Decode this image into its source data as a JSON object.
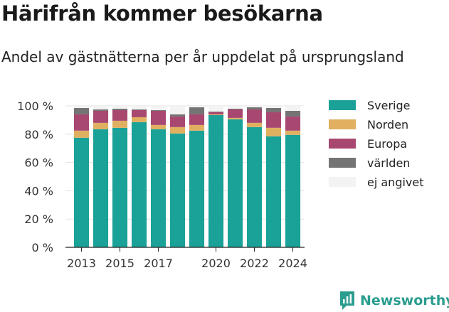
{
  "title": "Härifrån kommer besökarna",
  "subtitle": "Andel av gästnätterna per år uppdelat på ursprungsland",
  "brand": "Newsworthy",
  "chart_data": {
    "type": "bar",
    "stacked": true,
    "categories": [
      "2013",
      "2014",
      "2015",
      "2016",
      "2017",
      "2018",
      "2019",
      "2020",
      "2021",
      "2022",
      "2023",
      "2024"
    ],
    "x_tick_labels": [
      "2013",
      "2015",
      "2017",
      "2020",
      "2022",
      "2024"
    ],
    "ylim": [
      0,
      100
    ],
    "y_ticks": [
      0,
      20,
      40,
      60,
      80,
      100
    ],
    "y_tick_labels": [
      "0 %",
      "20 %",
      "40 %",
      "60 %",
      "80 %",
      "100 %"
    ],
    "grid": true,
    "legend_position": "right",
    "series": [
      {
        "name": "Sverige",
        "color": "#1aa198",
        "values": [
          77.5,
          83.5,
          84.5,
          88.5,
          83.5,
          80.5,
          82.5,
          93.5,
          90.5,
          85,
          78.5,
          79.5
        ]
      },
      {
        "name": "Norden",
        "color": "#e0b060",
        "values": [
          5,
          4.5,
          5,
          3.5,
          3,
          4.5,
          4,
          0.5,
          1,
          3,
          6,
          3
        ]
      },
      {
        "name": "Europa",
        "color": "#a84870",
        "values": [
          11.5,
          8.5,
          7.5,
          5,
          10,
          7.5,
          7.5,
          1.5,
          6,
          9.5,
          11,
          10
        ]
      },
      {
        "name": "världen",
        "color": "#747474",
        "values": [
          4.5,
          1,
          1,
          0.5,
          0.5,
          1.5,
          5,
          0.5,
          0.5,
          1.5,
          3,
          4
        ]
      },
      {
        "name": "ej angivet",
        "color": "#f3f3f3",
        "values": [
          1.5,
          2.5,
          2,
          2.5,
          3,
          6,
          1,
          4,
          2,
          1,
          1.5,
          3.5
        ]
      }
    ]
  }
}
